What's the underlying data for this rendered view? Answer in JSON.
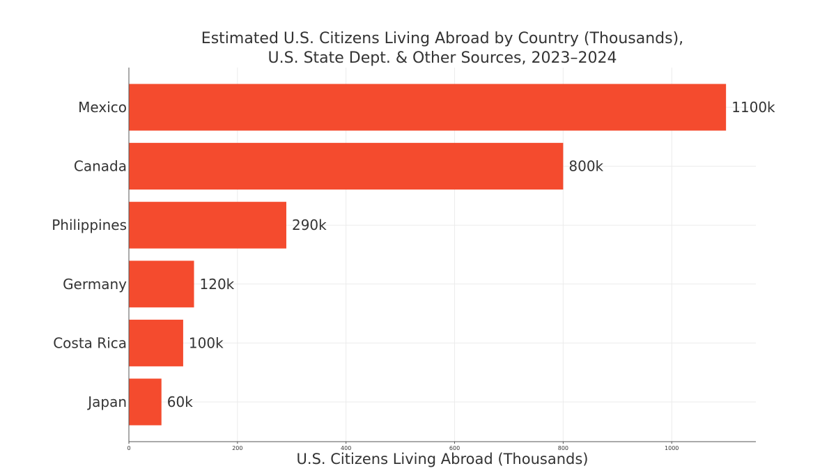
{
  "chart_data": {
    "type": "bar",
    "orientation": "horizontal",
    "title_lines": [
      "Estimated U.S. Citizens Living Abroad by Country (Thousands),",
      "U.S. State Dept. & Other Sources, 2023–2024"
    ],
    "xlabel": "U.S. Citizens Living Abroad (Thousands)",
    "ylabel": "",
    "categories": [
      "Mexico",
      "Canada",
      "Philippines",
      "Germany",
      "Costa Rica",
      "Japan"
    ],
    "values": [
      1100,
      800,
      290,
      120,
      100,
      60
    ],
    "data_labels": [
      "1100k",
      "800k",
      "290k",
      "120k",
      "100k",
      "60k"
    ],
    "xlim": [
      0,
      1155
    ],
    "xticks": [
      0,
      200,
      400,
      600,
      800,
      1000
    ],
    "xtick_labels": [
      "0",
      "200",
      "400",
      "600",
      "800",
      "1000"
    ],
    "grid": true,
    "legend": "none",
    "colors": {
      "bar": "#f44b2e",
      "grid": "#ebebeb",
      "axis": "#555555",
      "text": "#333333"
    }
  }
}
